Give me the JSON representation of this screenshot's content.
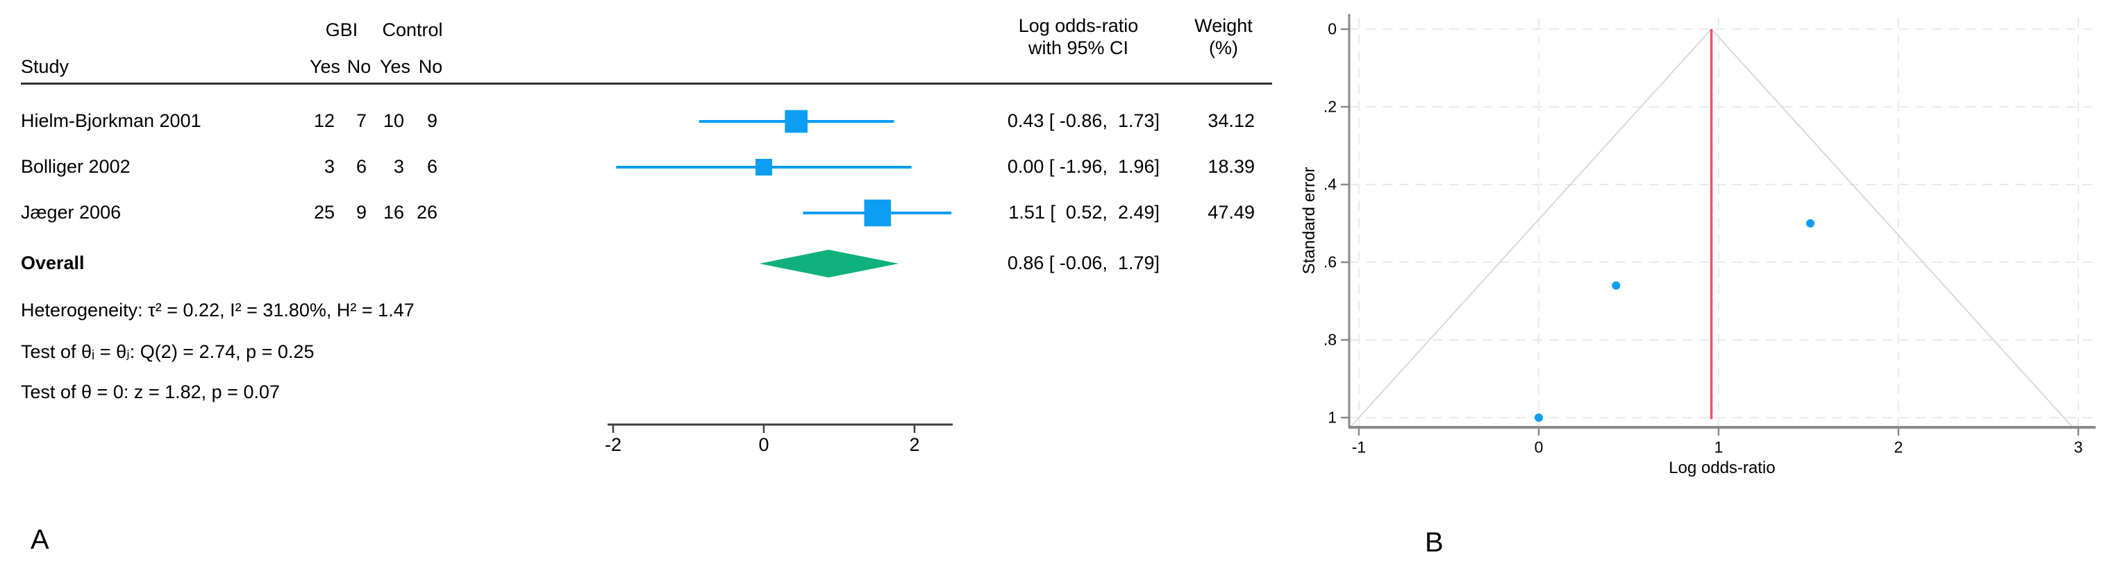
{
  "panel_a": {
    "label": "A",
    "columns": {
      "study": "Study",
      "gbi": "GBI",
      "control": "Control",
      "yes": "Yes",
      "no": "No",
      "effect_header_line1": "Log odds-ratio",
      "effect_header_line2": "with 95% CI",
      "weight_header_line1": "Weight",
      "weight_header_line2": "(%)"
    },
    "overall_label": "Overall",
    "stats": [
      "Heterogeneity: τ² = 0.22, I² = 31.80%, H² = 1.47",
      "Test of θᵢ = θⱼ: Q(2) = 2.74, p = 0.25",
      "Test of θ = 0: z = 1.82, p = 0.07"
    ]
  },
  "panel_b": {
    "label": "B",
    "xlabel": "Log odds-ratio",
    "ylabel": "Standard error"
  },
  "colors": {
    "marker_blue": "#0d9ef3",
    "overall_green": "#10b07d",
    "funnel_ref_red": "#f2506b",
    "funnel_line_gray": "#d9d9d9",
    "grid_gray": "#eaeaea",
    "funnel_axis_gray": "#8a8a8a",
    "forest_axis_gray": "#3f3f3f"
  },
  "chart_data": [
    {
      "type": "forest",
      "title": "",
      "effect_measure": "Log odds-ratio",
      "studies": [
        {
          "study": "Hielm-Bjorkman 2001",
          "gbi_yes": 12,
          "gbi_no": 7,
          "control_yes": 10,
          "control_no": 9,
          "estimate": 0.43,
          "ci_low": -0.86,
          "ci_high": 1.73,
          "weight_pct": 34.12,
          "ci_label": "0.43 [ -0.86,  1.73]",
          "weight_label": "34.12"
        },
        {
          "study": "Bolliger 2002",
          "gbi_yes": 3,
          "gbi_no": 6,
          "control_yes": 3,
          "control_no": 6,
          "estimate": 0.0,
          "ci_low": -1.96,
          "ci_high": 1.96,
          "weight_pct": 18.39,
          "ci_label": "0.00 [ -1.96,  1.96]",
          "weight_label": "18.39"
        },
        {
          "study": "Jæger 2006",
          "gbi_yes": 25,
          "gbi_no": 9,
          "control_yes": 16,
          "control_no": 26,
          "estimate": 1.51,
          "ci_low": 0.52,
          "ci_high": 2.49,
          "weight_pct": 47.49,
          "ci_label": "1.51 [  0.52,  2.49]",
          "weight_label": "47.49"
        }
      ],
      "overall": {
        "estimate": 0.86,
        "ci_low": -0.06,
        "ci_high": 1.79,
        "ci_label": "0.86 [ -0.06,  1.79]"
      },
      "heterogeneity": {
        "tau2": 0.22,
        "I2_pct": 31.8,
        "H2": 1.47,
        "Q_df": 2,
        "Q": 2.74,
        "p_Q": 0.25,
        "z": 1.82,
        "p_z": 0.07
      },
      "xticks": [
        {
          "value": -2,
          "label": "-2"
        },
        {
          "value": 0,
          "label": "0"
        },
        {
          "value": 2,
          "label": "2"
        }
      ],
      "xlim": [
        -2.1,
        2.5
      ],
      "grid": false
    },
    {
      "type": "scatter",
      "subtype": "funnel",
      "xlabel": "Log odds-ratio",
      "ylabel": "Standard error",
      "points": [
        {
          "study": "Hielm-Bjorkman 2001",
          "x": 0.43,
          "se": 0.66
        },
        {
          "study": "Bolliger 2002",
          "x": 0.0,
          "se": 1.0
        },
        {
          "study": "Jæger 2006",
          "x": 1.51,
          "se": 0.5
        }
      ],
      "estimate_ref_x": 0.96,
      "pseudo_ci_multiplier": 1.96,
      "xticks": [
        {
          "value": -1,
          "label": "-1"
        },
        {
          "value": 0,
          "label": "0"
        },
        {
          "value": 1,
          "label": "1"
        },
        {
          "value": 2,
          "label": "2"
        },
        {
          "value": 3,
          "label": "3"
        }
      ],
      "yticks": [
        {
          "value": 0,
          "label": "0"
        },
        {
          "value": 0.2,
          "label": ".2"
        },
        {
          "value": 0.4,
          "label": ".4"
        },
        {
          "value": 0.6,
          "label": ".6"
        },
        {
          "value": 0.8,
          "label": ".8"
        },
        {
          "value": 1,
          "label": "1"
        }
      ],
      "xlim": [
        -1.05,
        3.1
      ],
      "ylim_se": [
        0,
        1.025
      ],
      "grid": "dashed",
      "legend": "none"
    }
  ]
}
